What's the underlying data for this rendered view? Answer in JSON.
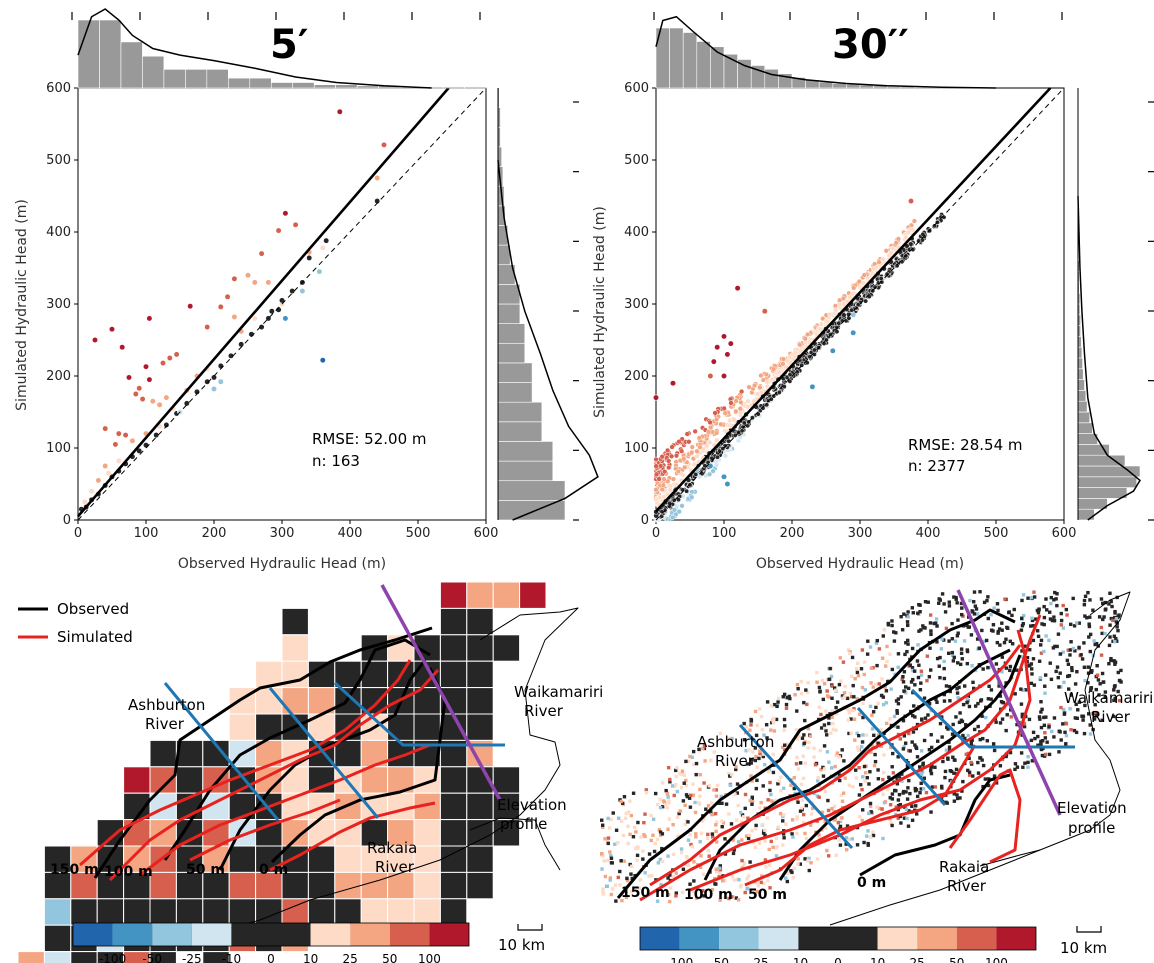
{
  "colors": {
    "neg100": "#2166ac",
    "neg50": "#4393c3",
    "neg25": "#92c5de",
    "neg10": "#d1e5f0",
    "zero": "#262626",
    "pos10": "#fddbc7",
    "pos25": "#f4a582",
    "pos50": "#d6604d",
    "pos100": "#b2182b",
    "observed": "#000000",
    "simulated": "#e8231f",
    "profile": "#1f77b4",
    "elevation": "#8e44ad",
    "hist": "#999999"
  },
  "chart_data": [
    {
      "type": "scatter",
      "title": "5′",
      "xlabel": "Observed Hydraulic Head (m)",
      "ylabel": "Simulated Hydraulic Head (m)",
      "xlim": [
        0,
        600
      ],
      "ylim": [
        0,
        600
      ],
      "xticks": [
        0,
        100,
        200,
        300,
        400,
        500,
        600
      ],
      "yticks": [
        0,
        100,
        200,
        300,
        400,
        500,
        600
      ],
      "annotation": [
        "RMSE: 52.00 m",
        "n: 163"
      ],
      "fit_line": [
        [
          0,
          5
        ],
        [
          545,
          600
        ]
      ],
      "one_to_one_line": [
        [
          0,
          0
        ],
        [
          600,
          600
        ]
      ],
      "points": [
        [
          385,
          567,
          "pos100"
        ],
        [
          450,
          521,
          "pos50"
        ],
        [
          440,
          475,
          "pos25"
        ],
        [
          365,
          388,
          "zero"
        ],
        [
          360,
          378,
          "pos10"
        ],
        [
          340,
          372,
          "pos25"
        ],
        [
          340,
          364,
          "zero"
        ],
        [
          305,
          426,
          "pos100"
        ],
        [
          320,
          410,
          "pos50"
        ],
        [
          295,
          402,
          "pos50"
        ],
        [
          270,
          370,
          "pos50"
        ],
        [
          230,
          335,
          "pos50"
        ],
        [
          250,
          340,
          "pos25"
        ],
        [
          260,
          330,
          "pos25"
        ],
        [
          280,
          330,
          "pos25"
        ],
        [
          300,
          300,
          "pos10"
        ],
        [
          295,
          292,
          "zero"
        ],
        [
          280,
          280,
          "zero"
        ],
        [
          305,
          280,
          "neg50"
        ],
        [
          330,
          318,
          "neg25"
        ],
        [
          355,
          345,
          "neg25"
        ],
        [
          360,
          222,
          "neg100"
        ],
        [
          25,
          250,
          "pos100"
        ],
        [
          50,
          265,
          "pos100"
        ],
        [
          65,
          240,
          "pos100"
        ],
        [
          105,
          280,
          "pos100"
        ],
        [
          165,
          297,
          "pos100"
        ],
        [
          210,
          296,
          "pos50"
        ],
        [
          190,
          268,
          "pos50"
        ],
        [
          220,
          310,
          "pos50"
        ],
        [
          230,
          282,
          "pos25"
        ],
        [
          135,
          225,
          "pos50"
        ],
        [
          145,
          230,
          "pos50"
        ],
        [
          125,
          218,
          "pos50"
        ],
        [
          100,
          213,
          "pos100"
        ],
        [
          105,
          195,
          "pos100"
        ],
        [
          75,
          198,
          "pos100"
        ],
        [
          90,
          183,
          "pos50"
        ],
        [
          85,
          175,
          "pos50"
        ],
        [
          95,
          168,
          "pos50"
        ],
        [
          110,
          165,
          "pos25"
        ],
        [
          120,
          160,
          "pos25"
        ],
        [
          130,
          170,
          "pos25"
        ],
        [
          60,
          120,
          "pos50"
        ],
        [
          40,
          127,
          "pos50"
        ],
        [
          70,
          118,
          "pos50"
        ],
        [
          55,
          105,
          "pos50"
        ],
        [
          40,
          75,
          "pos25"
        ],
        [
          30,
          55,
          "pos25"
        ],
        [
          20,
          40,
          "pos10"
        ],
        [
          10,
          25,
          "pos10"
        ],
        [
          5,
          15,
          "zero"
        ],
        [
          12,
          18,
          "zero"
        ],
        [
          20,
          28,
          "zero"
        ],
        [
          30,
          36,
          "zero"
        ],
        [
          40,
          48,
          "zero"
        ],
        [
          50,
          60,
          "zero"
        ],
        [
          60,
          68,
          "zero"
        ],
        [
          70,
          78,
          "zero"
        ],
        [
          80,
          88,
          "zero"
        ],
        [
          90,
          96,
          "zero"
        ],
        [
          100,
          104,
          "zero"
        ],
        [
          115,
          118,
          "zero"
        ],
        [
          130,
          132,
          "zero"
        ],
        [
          145,
          148,
          "zero"
        ],
        [
          160,
          162,
          "zero"
        ],
        [
          175,
          178,
          "zero"
        ],
        [
          190,
          192,
          "zero"
        ],
        [
          200,
          198,
          "zero"
        ],
        [
          210,
          214,
          "zero"
        ],
        [
          225,
          228,
          "zero"
        ],
        [
          240,
          244,
          "zero"
        ],
        [
          255,
          258,
          "zero"
        ],
        [
          270,
          268,
          "zero"
        ],
        [
          285,
          290,
          "zero"
        ],
        [
          300,
          305,
          "zero"
        ],
        [
          315,
          318,
          "zero"
        ],
        [
          330,
          330,
          "zero"
        ],
        [
          440,
          443,
          "zero"
        ],
        [
          200,
          182,
          "neg25"
        ],
        [
          210,
          192,
          "neg25"
        ],
        [
          150,
          150,
          "neg10"
        ],
        [
          120,
          130,
          "pos10"
        ],
        [
          140,
          155,
          "pos10"
        ],
        [
          175,
          200,
          "pos25"
        ],
        [
          160,
          180,
          "pos25"
        ],
        [
          190,
          210,
          "pos10"
        ],
        [
          240,
          262,
          "pos25"
        ],
        [
          260,
          280,
          "pos10"
        ],
        [
          80,
          110,
          "pos25"
        ],
        [
          100,
          120,
          "pos25"
        ],
        [
          60,
          82,
          "pos10"
        ],
        [
          45,
          65,
          "pos10"
        ]
      ],
      "hist_x": [
        0.62,
        0.62,
        0.42,
        0.29,
        0.17,
        0.17,
        0.17,
        0.09,
        0.09,
        0.05,
        0.05,
        0.03,
        0.03,
        0.02,
        0.02,
        0.01,
        0.01,
        0.01,
        0.01
      ],
      "kde_x": [
        [
          0,
          0.3
        ],
        [
          20,
          0.65
        ],
        [
          40,
          0.72
        ],
        [
          60,
          0.62
        ],
        [
          80,
          0.48
        ],
        [
          110,
          0.36
        ],
        [
          150,
          0.3
        ],
        [
          200,
          0.25
        ],
        [
          260,
          0.18
        ],
        [
          320,
          0.1
        ],
        [
          380,
          0.05
        ],
        [
          450,
          0.02
        ],
        [
          520,
          0.0
        ]
      ],
      "hist_y": [
        0.55,
        0.55,
        0.45,
        0.45,
        0.36,
        0.36,
        0.28,
        0.28,
        0.22,
        0.22,
        0.18,
        0.18,
        0.14,
        0.1,
        0.08,
        0.06,
        0.05,
        0.04,
        0.03,
        0.02,
        0.02,
        0.01
      ],
      "kde_y": [
        [
          0,
          0.12
        ],
        [
          30,
          0.55
        ],
        [
          60,
          0.82
        ],
        [
          90,
          0.75
        ],
        [
          130,
          0.58
        ],
        [
          180,
          0.45
        ],
        [
          230,
          0.35
        ],
        [
          290,
          0.22
        ],
        [
          350,
          0.12
        ],
        [
          420,
          0.05
        ],
        [
          500,
          0.0
        ]
      ]
    },
    {
      "type": "scatter",
      "title": "30′′",
      "xlabel": "Observed Hydraulic Head (m)",
      "ylabel": "Simulated Hydraulic Head (m)",
      "xlim": [
        0,
        600
      ],
      "ylim": [
        0,
        600
      ],
      "xticks": [
        0,
        100,
        200,
        300,
        400,
        500,
        600
      ],
      "yticks": [
        0,
        100,
        200,
        300,
        400,
        500,
        600
      ],
      "annotation": [
        "RMSE: 28.54 m",
        "n: 2377"
      ],
      "fit_line": [
        [
          0,
          12
        ],
        [
          580,
          600
        ]
      ],
      "one_to_one_line": [
        [
          0,
          0
        ],
        [
          600,
          600
        ]
      ],
      "points_generated": true,
      "outliers": [
        [
          120,
          322,
          "pos100"
        ],
        [
          375,
          443,
          "pos50"
        ],
        [
          160,
          290,
          "pos50"
        ],
        [
          0,
          170,
          "pos100"
        ],
        [
          25,
          190,
          "pos100"
        ],
        [
          100,
          255,
          "pos100"
        ],
        [
          90,
          240,
          "pos100"
        ],
        [
          85,
          220,
          "pos100"
        ],
        [
          105,
          230,
          "pos100"
        ],
        [
          110,
          245,
          "pos100"
        ],
        [
          80,
          200,
          "pos50"
        ],
        [
          100,
          200,
          "pos100"
        ],
        [
          290,
          260,
          "neg50"
        ],
        [
          230,
          185,
          "neg50"
        ],
        [
          260,
          235,
          "neg50"
        ],
        [
          100,
          60,
          "neg50"
        ],
        [
          105,
          50,
          "neg50"
        ],
        [
          80,
          75,
          "neg50"
        ],
        [
          60,
          70,
          "neg25"
        ],
        [
          290,
          285,
          "neg25"
        ]
      ],
      "hist_x": [
        0.8,
        0.8,
        0.74,
        0.62,
        0.55,
        0.45,
        0.38,
        0.3,
        0.25,
        0.19,
        0.14,
        0.11,
        0.08,
        0.06,
        0.05,
        0.04,
        0.03,
        0.02,
        0.02,
        0.01,
        0.01,
        0.01,
        0.01,
        0.01,
        0.0,
        0.0,
        0.0,
        0.0,
        0.0,
        0.0
      ],
      "kde_x": [
        [
          0,
          0.55
        ],
        [
          10,
          0.9
        ],
        [
          30,
          0.95
        ],
        [
          55,
          0.75
        ],
        [
          90,
          0.48
        ],
        [
          130,
          0.3
        ],
        [
          170,
          0.18
        ],
        [
          220,
          0.11
        ],
        [
          280,
          0.06
        ],
        [
          340,
          0.03
        ],
        [
          420,
          0.01
        ],
        [
          500,
          0.0
        ]
      ],
      "hist_y": [
        0.25,
        0.45,
        0.75,
        0.9,
        0.95,
        0.72,
        0.48,
        0.3,
        0.22,
        0.18,
        0.14,
        0.12,
        0.1,
        0.08,
        0.07,
        0.06,
        0.05,
        0.04,
        0.04,
        0.03,
        0.03,
        0.02,
        0.02,
        0.02,
        0.01,
        0.01,
        0.01,
        0.01,
        0.01,
        0.01,
        0.0,
        0.0,
        0.0,
        0.0,
        0.0,
        0.0,
        0.0,
        0.0,
        0.0,
        0.0
      ],
      "kde_y": [
        [
          0,
          0.15
        ],
        [
          20,
          0.45
        ],
        [
          40,
          0.85
        ],
        [
          55,
          0.95
        ],
        [
          70,
          0.75
        ],
        [
          90,
          0.45
        ],
        [
          120,
          0.25
        ],
        [
          170,
          0.15
        ],
        [
          230,
          0.1
        ],
        [
          290,
          0.06
        ],
        [
          350,
          0.03
        ],
        [
          450,
          0.0
        ]
      ]
    }
  ],
  "maps": [
    {
      "legend": {
        "observed": "Observed",
        "simulated": "Simulated"
      },
      "labels": {
        "ashburton": [
          "Ashburton",
          "River"
        ],
        "waikamariri": [
          "Waikamariri",
          "River"
        ],
        "rakaia": [
          "Rakaia",
          "River"
        ],
        "elevation": [
          "Elevation",
          "profile"
        ]
      },
      "contours": [
        "150 m",
        "100 m",
        "50 m",
        "0 m"
      ],
      "scalebar": "10 km"
    },
    {
      "labels": {
        "ashburton": [
          "Ashburton",
          "River"
        ],
        "waikamariri": [
          "Waikamariri",
          "River"
        ],
        "rakaia": [
          "Rakaia",
          "River"
        ],
        "elevation": [
          "Elevation",
          "profile"
        ]
      },
      "contours": [
        "150 m",
        "100 m",
        "50 m",
        "0 m"
      ],
      "scalebar": "10 km"
    }
  ],
  "colorbar": {
    "labels": [
      "-100",
      "-50",
      "-25",
      "-10",
      "0",
      "10",
      "25",
      "50",
      "100"
    ],
    "keys": [
      "neg100",
      "neg50",
      "neg25",
      "neg10",
      "zero",
      "zero",
      "pos10",
      "pos25",
      "pos50",
      "pos100"
    ]
  }
}
